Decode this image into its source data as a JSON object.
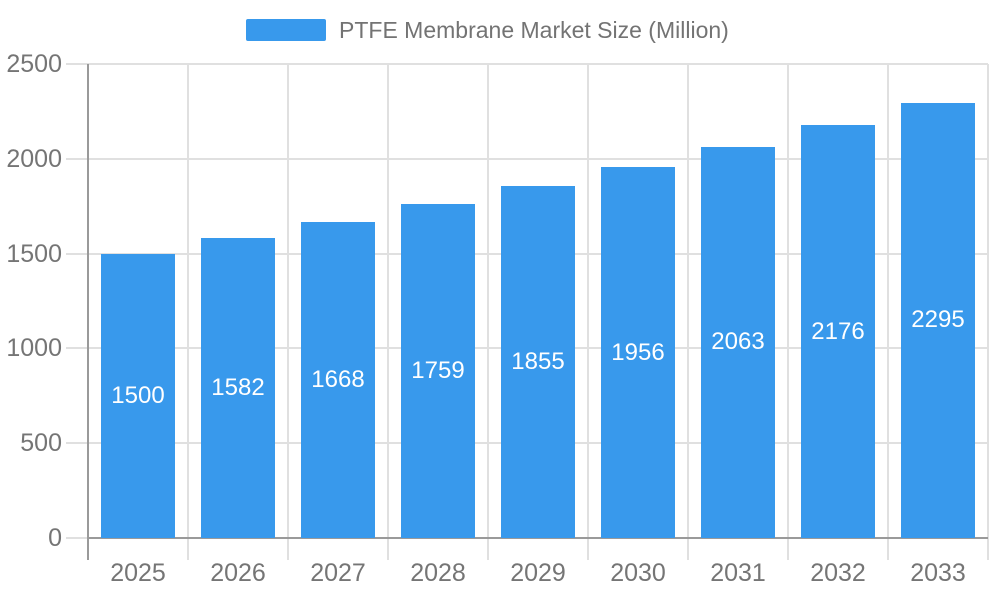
{
  "legend": {
    "label": "PTFE Membrane Market Size (Million)"
  },
  "chart_data": {
    "type": "bar",
    "title": "PTFE Membrane Market Size (Million)",
    "series_name": "PTFE Membrane Market Size (Million)",
    "categories": [
      "2025",
      "2026",
      "2027",
      "2028",
      "2029",
      "2030",
      "2031",
      "2032",
      "2033"
    ],
    "values": [
      1500,
      1582,
      1668,
      1759,
      1855,
      1956,
      2063,
      2176,
      2295
    ],
    "xlabel": "",
    "ylabel": "",
    "ylim": [
      0,
      2500
    ],
    "y_ticks": [
      0,
      500,
      1000,
      1500,
      2000,
      2500
    ],
    "grid": true,
    "legend_position": "top-center",
    "value_labels": "inside-center",
    "colors": {
      "bar": "#3899EC",
      "value_label": "#FFFFFF",
      "axis_text": "#757575",
      "legend_text": "#737373",
      "gridline": "#E0E0E0",
      "axis_line": "#9A9A9A",
      "background": "#FFFFFF"
    }
  }
}
